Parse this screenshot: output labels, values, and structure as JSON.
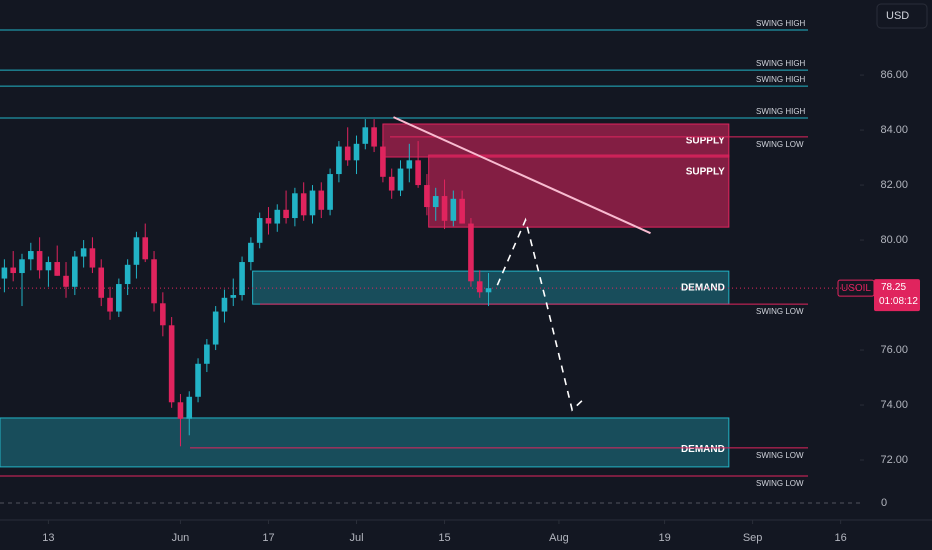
{
  "chart_data": {
    "type": "candlestick",
    "symbol": "USOIL",
    "currency": "USD",
    "x": [
      0,
      1,
      2,
      3,
      4,
      5,
      6,
      7,
      8,
      9,
      10,
      11,
      12,
      13,
      14,
      15,
      16,
      17,
      18,
      19,
      20,
      21,
      22,
      23,
      24,
      25,
      26,
      27,
      28,
      29,
      30,
      31,
      32,
      33,
      34,
      35,
      36,
      37,
      38,
      39,
      40,
      41,
      42,
      43,
      44,
      45,
      46,
      47,
      48,
      49,
      50,
      51,
      52,
      53,
      54,
      55
    ],
    "open": [
      78.6,
      79.0,
      78.8,
      79.3,
      79.6,
      78.9,
      79.2,
      78.7,
      78.3,
      79.4,
      79.7,
      79.0,
      77.9,
      77.4,
      78.4,
      79.1,
      80.1,
      79.3,
      77.7,
      76.9,
      74.1,
      73.5,
      74.3,
      75.5,
      76.2,
      77.4,
      77.9,
      78.0,
      79.2,
      79.9,
      80.8,
      80.6,
      81.1,
      80.8,
      81.7,
      80.9,
      81.8,
      81.1,
      82.4,
      83.4,
      82.9,
      83.5,
      84.1,
      83.4,
      82.3,
      81.8,
      82.6,
      82.9,
      82.0,
      81.2,
      81.6,
      80.7,
      81.5,
      80.6,
      78.5,
      78.1
    ],
    "high": [
      79.3,
      79.6,
      79.5,
      79.9,
      80.1,
      79.4,
      79.8,
      79.2,
      79.6,
      80.0,
      80.1,
      79.3,
      78.3,
      78.6,
      79.3,
      80.3,
      80.6,
      79.6,
      78.1,
      77.2,
      74.4,
      74.5,
      75.7,
      76.4,
      77.6,
      78.2,
      78.6,
      79.4,
      80.1,
      81.0,
      81.2,
      81.3,
      81.8,
      81.9,
      82.1,
      82.0,
      82.1,
      82.6,
      83.6,
      84.1,
      83.8,
      84.4,
      84.4,
      83.6,
      82.6,
      82.9,
      83.5,
      83.6,
      82.4,
      81.9,
      82.2,
      81.8,
      81.8,
      80.8,
      78.9,
      78.8
    ],
    "low": [
      78.1,
      78.5,
      77.6,
      78.9,
      78.6,
      78.3,
      78.7,
      77.9,
      78.0,
      79.0,
      78.8,
      77.6,
      77.1,
      77.2,
      78.0,
      78.6,
      79.2,
      77.4,
      76.5,
      73.9,
      72.5,
      72.9,
      74.1,
      75.2,
      76.0,
      77.0,
      77.6,
      77.8,
      78.9,
      79.7,
      80.2,
      80.3,
      80.6,
      80.5,
      80.7,
      80.6,
      80.8,
      80.9,
      82.1,
      82.7,
      82.4,
      83.3,
      83.2,
      82.1,
      81.5,
      81.6,
      82.1,
      81.9,
      80.9,
      80.7,
      80.4,
      80.5,
      80.6,
      78.3,
      77.9,
      77.6
    ],
    "close": [
      79.0,
      78.8,
      79.3,
      79.6,
      78.9,
      79.2,
      78.7,
      78.3,
      79.4,
      79.7,
      79.0,
      77.9,
      77.4,
      78.4,
      79.1,
      80.1,
      79.3,
      77.7,
      76.9,
      74.1,
      73.5,
      74.3,
      75.5,
      76.2,
      77.4,
      77.9,
      78.0,
      79.2,
      79.9,
      80.8,
      80.6,
      81.1,
      80.8,
      81.7,
      80.9,
      81.8,
      81.1,
      82.4,
      83.4,
      82.9,
      83.5,
      84.1,
      83.4,
      82.3,
      81.8,
      82.6,
      82.9,
      82.0,
      81.2,
      81.6,
      80.7,
      81.5,
      80.6,
      78.5,
      78.1,
      78.25
    ],
    "up_color": "#22b3c6",
    "down_color": "#e0245e",
    "last_price": {
      "value": 78.25,
      "label": "78.25",
      "countdown": "01:08:12"
    },
    "xlim": [
      -0.5,
      97.2
    ],
    "ylim": [
      70.91,
      88.73
    ],
    "xticks": [
      {
        "value": 5,
        "label": "13"
      },
      {
        "value": 20,
        "label": "Jun"
      },
      {
        "value": 30,
        "label": "17"
      },
      {
        "value": 40,
        "label": "Jul"
      },
      {
        "value": 50,
        "label": "15"
      },
      {
        "value": 63,
        "label": "Aug"
      },
      {
        "value": 75,
        "label": "19"
      },
      {
        "value": 85,
        "label": "Sep"
      },
      {
        "value": 95,
        "label": "16"
      }
    ],
    "yticks": [
      {
        "value": 86,
        "label": "86.00"
      },
      {
        "value": 84,
        "label": "84.00"
      },
      {
        "value": 82,
        "label": "82.00"
      },
      {
        "value": 80,
        "label": "80.00"
      },
      {
        "value": 76,
        "label": "76.00"
      },
      {
        "value": 74,
        "label": "74.00"
      },
      {
        "value": 72,
        "label": "72.00"
      }
    ],
    "indicator_ticks": [
      0
    ],
    "levels": [
      {
        "label": "SWING HIGH",
        "value": 87.64
      },
      {
        "label": "SWING HIGH",
        "value": 86.18
      },
      {
        "label": "SWING HIGH",
        "value": 85.6
      },
      {
        "label": "SWING HIGH",
        "value": 84.44
      },
      {
        "label": "SWING LOW",
        "value": 83.75
      },
      {
        "label": "SWING LOW",
        "value": 77.67
      },
      {
        "label": "SWING LOW",
        "value": 72.44
      },
      {
        "label": "SWING LOW",
        "value": 71.42
      }
    ],
    "zones": [
      {
        "label": "SUPPLY",
        "kind": "supply",
        "x": [
          43,
          82.3
        ],
        "range": [
          83.02,
          84.22
        ]
      },
      {
        "label": "SUPPLY",
        "kind": "supply",
        "x": [
          48.2,
          82.3
        ],
        "range": [
          80.47,
          83.09
        ]
      },
      {
        "label": "DEMAND",
        "kind": "demand",
        "x": [
          28.2,
          82.3
        ],
        "range": [
          77.67,
          78.87
        ]
      },
      {
        "label": "DEMAND",
        "kind": "demand",
        "x": [
          -0.5,
          82.3
        ],
        "range": [
          71.75,
          73.53
        ]
      }
    ],
    "trendline": {
      "x": [
        44.2,
        73.4
      ],
      "values": [
        84.47,
        80.25
      ]
    },
    "projection": {
      "x": [
        56,
        59.2,
        61.5,
        64.5,
        65.7
      ],
      "values": [
        78.36,
        80.73,
        77.82,
        73.82,
        74.18
      ]
    }
  }
}
